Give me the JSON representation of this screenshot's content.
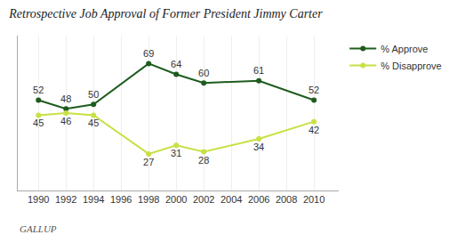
{
  "chart_data": {
    "type": "line",
    "title": "Retrospective Job Approval of Former President Jimmy Carter",
    "x": [
      1990,
      1992,
      1994,
      1998,
      2000,
      2002,
      2006,
      2010
    ],
    "series": [
      {
        "name": "% Approve",
        "color": "#1e5c1e",
        "values": [
          52,
          48,
          50,
          69,
          64,
          60,
          61,
          52
        ]
      },
      {
        "name": "% Disapprove",
        "color": "#c8e043",
        "values": [
          45,
          46,
          45,
          27,
          31,
          28,
          34,
          42
        ]
      }
    ],
    "xlim": [
      1988.5,
      2011.8
    ],
    "xticks": [
      1990,
      1992,
      1994,
      1996,
      1998,
      2000,
      2002,
      2004,
      2006,
      2008,
      2010
    ],
    "ylim": [
      10,
      82
    ],
    "tick_labels": "x",
    "grid": "x",
    "legend": "upper right",
    "data_labels": true,
    "marker": "circle",
    "annotations": [
      "GALLUP"
    ]
  }
}
